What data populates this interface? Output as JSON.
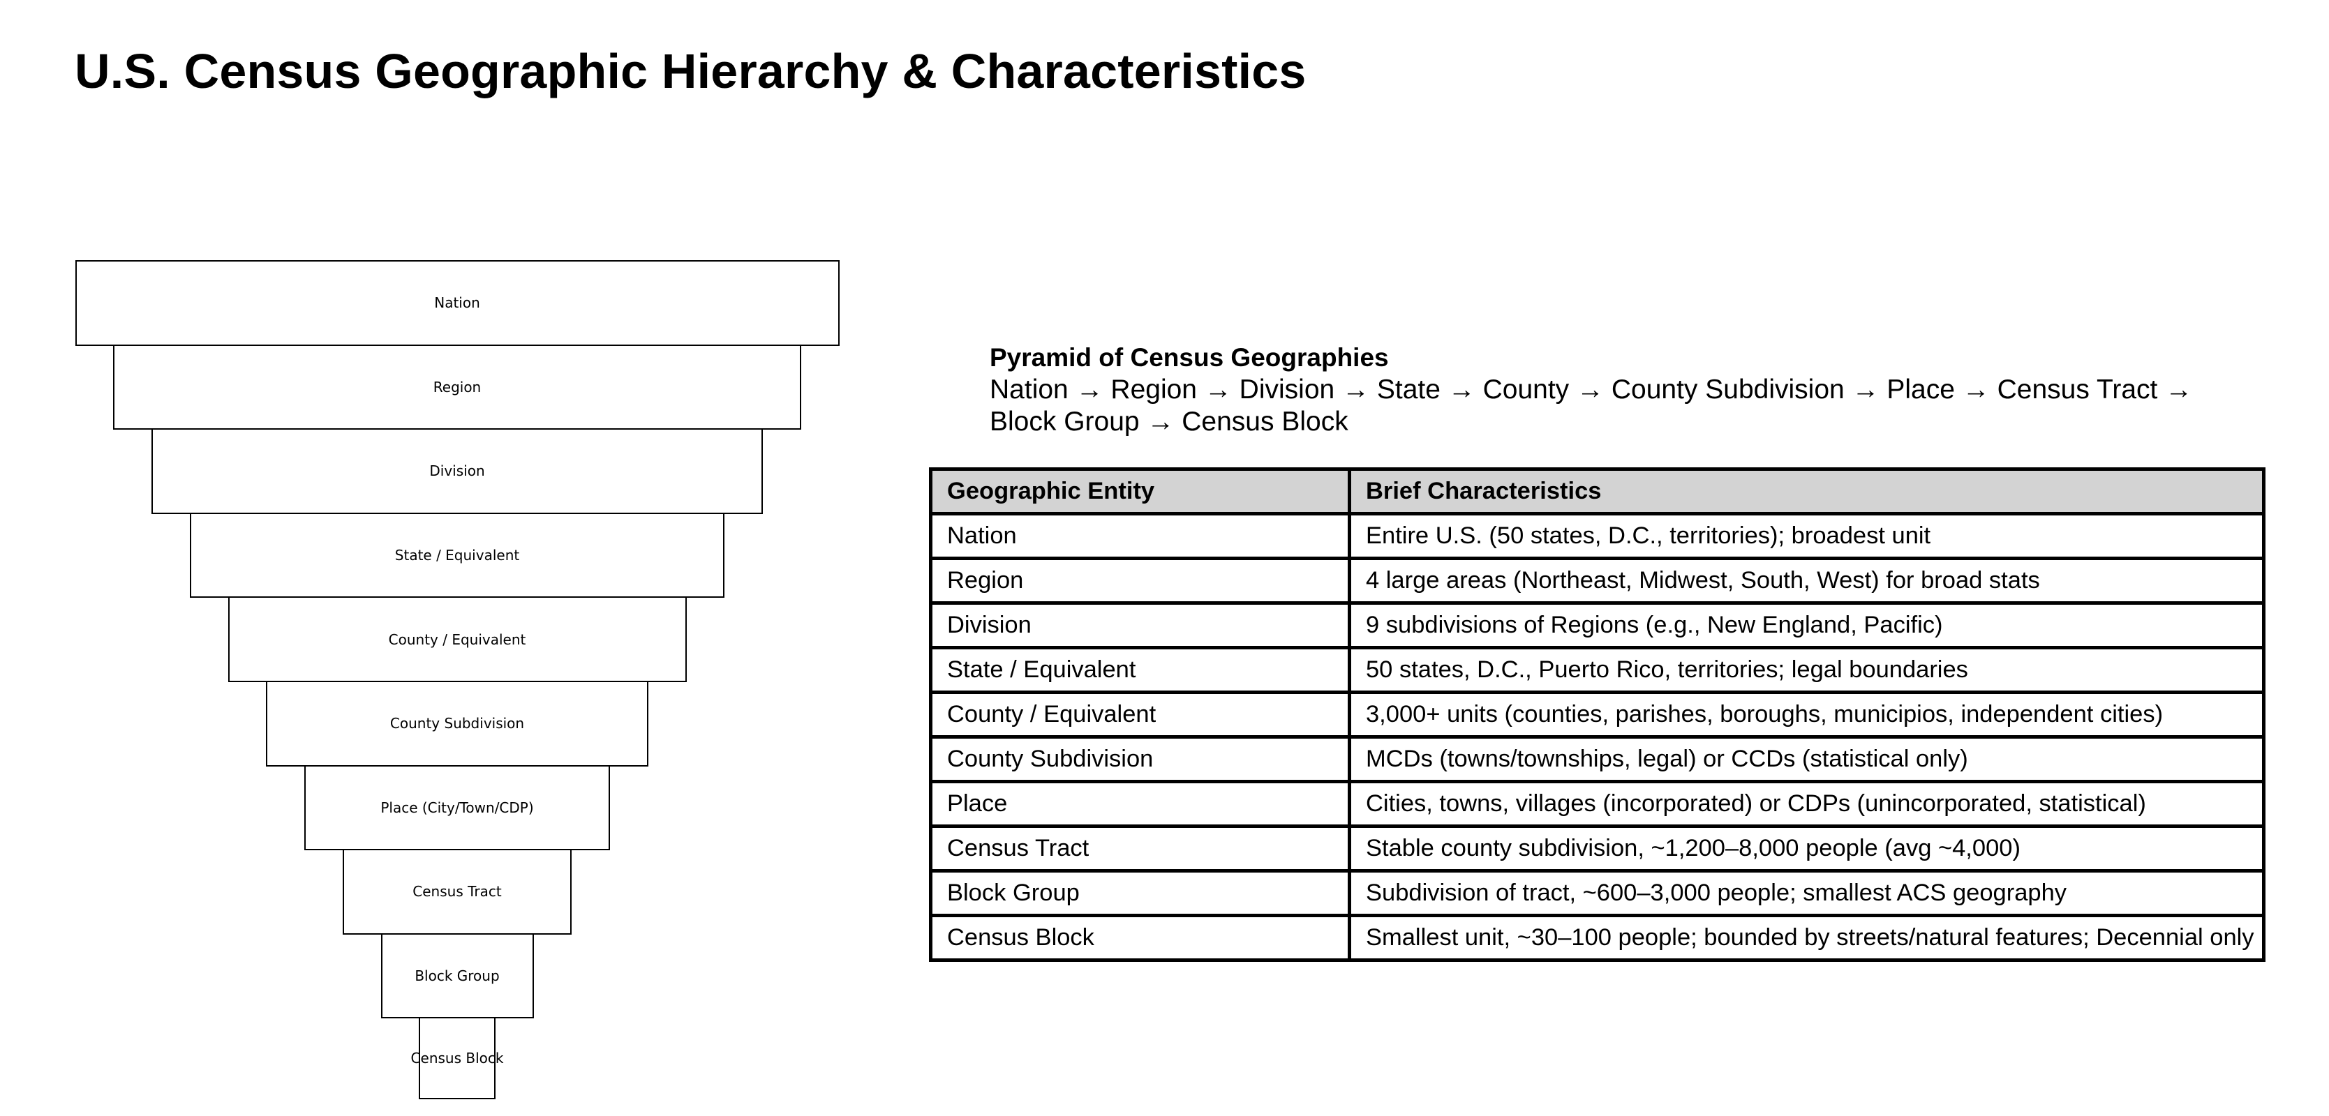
{
  "title": "U.S. Census Geographic Hierarchy & Characteristics",
  "pyramid": {
    "levels": [
      "Nation",
      "Region",
      "Division",
      "State / Equivalent",
      "County / Equivalent",
      "County Subdivision",
      "Place (City/Town/CDP)",
      "Census Tract",
      "Block Group",
      "Census Block"
    ]
  },
  "legend": {
    "heading": "Pyramid of Census Geographies",
    "chain_line1": "Nation → Region → Division → State → County → County Subdivision → Place → Census Tract →",
    "chain_line2": "Block Group → Census Block"
  },
  "table": {
    "headers": [
      "Geographic Entity",
      "Brief Characteristics"
    ],
    "rows": [
      [
        "Nation",
        "Entire U.S. (50 states, D.C., territories); broadest unit"
      ],
      [
        "Region",
        "4 large areas (Northeast, Midwest, South, West) for broad stats"
      ],
      [
        "Division",
        "9 subdivisions of Regions (e.g., New England, Pacific)"
      ],
      [
        "State / Equivalent",
        "50 states, D.C., Puerto Rico, territories; legal boundaries"
      ],
      [
        "County / Equivalent",
        "3,000+ units (counties, parishes, boroughs, municipios, independent cities)"
      ],
      [
        "County Subdivision",
        "MCDs (towns/townships, legal) or CCDs (statistical only)"
      ],
      [
        "Place",
        "Cities, towns, villages (incorporated) or CDPs (unincorporated, statistical)"
      ],
      [
        "Census Tract",
        "Stable county subdivision, ~1,200–8,000 people (avg ~4,000)"
      ],
      [
        "Block Group",
        "Subdivision of tract, ~600–3,000 people; smallest ACS geography"
      ],
      [
        "Census Block",
        "Smallest unit, ~30–100 people; bounded by streets/natural features; Decennial only"
      ]
    ]
  }
}
